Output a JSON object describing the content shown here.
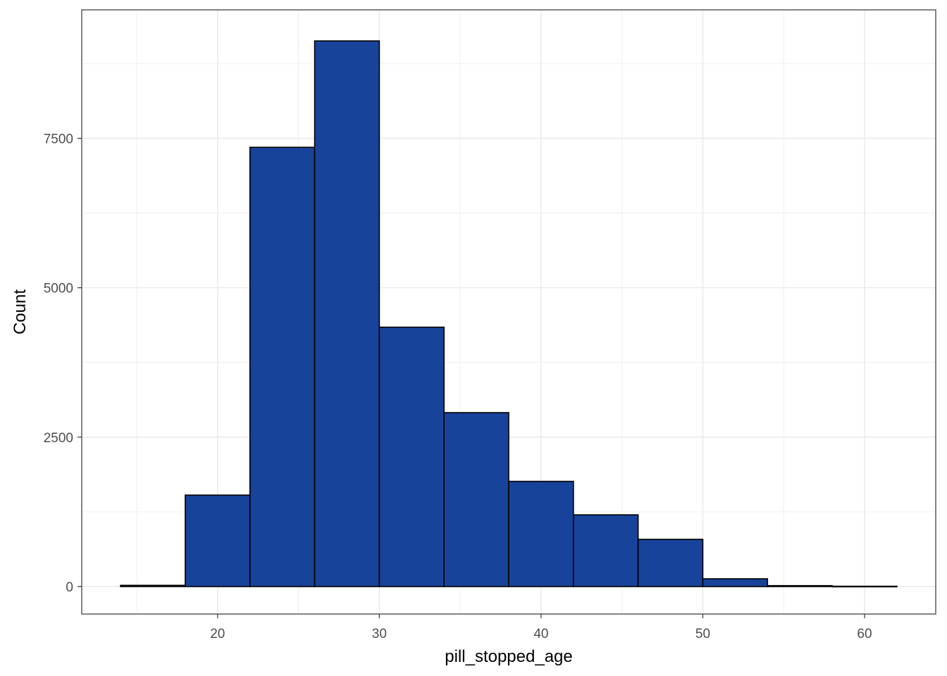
{
  "chart_data": {
    "type": "histogram",
    "xlabel": "pill_stopped_age",
    "ylabel": "Count",
    "xlim": [
      11.6,
      64.4
    ],
    "ylim": [
      -460,
      9650
    ],
    "x_ticks": [
      20,
      30,
      40,
      50,
      60
    ],
    "x_tick_labels": [
      "20",
      "30",
      "40",
      "50",
      "60"
    ],
    "x_minor_ticks": [
      15,
      25,
      35,
      45,
      55
    ],
    "y_ticks": [
      0,
      2500,
      5000,
      7500
    ],
    "y_tick_labels": [
      "0",
      "2500",
      "5000",
      "7500"
    ],
    "y_minor_ticks": [
      1250,
      3750,
      6250,
      8750
    ],
    "bins": [
      {
        "x0": 14,
        "x1": 18,
        "count": 20
      },
      {
        "x0": 18,
        "x1": 22,
        "count": 1530
      },
      {
        "x0": 22,
        "x1": 26,
        "count": 7350
      },
      {
        "x0": 26,
        "x1": 30,
        "count": 9130
      },
      {
        "x0": 30,
        "x1": 34,
        "count": 4340
      },
      {
        "x0": 34,
        "x1": 38,
        "count": 2910
      },
      {
        "x0": 38,
        "x1": 42,
        "count": 1760
      },
      {
        "x0": 42,
        "x1": 46,
        "count": 1200
      },
      {
        "x0": 46,
        "x1": 50,
        "count": 790
      },
      {
        "x0": 50,
        "x1": 54,
        "count": 130
      },
      {
        "x0": 54,
        "x1": 58,
        "count": 15
      },
      {
        "x0": 58,
        "x1": 62,
        "count": 5
      }
    ],
    "bar_fill": "#18439a",
    "bar_stroke": "#000000",
    "grid": true,
    "grid_color": "#ebebeb",
    "panel_border_color": "#333333",
    "legend": "none"
  }
}
